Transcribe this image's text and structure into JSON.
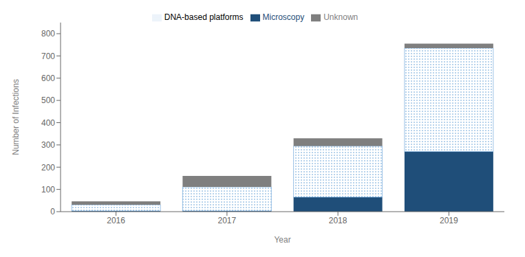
{
  "chart_data": {
    "type": "bar",
    "stacked": true,
    "xlabel": "Year",
    "ylabel": "Number of Infections",
    "categories": [
      "2016",
      "2017",
      "2018",
      "2019"
    ],
    "series": [
      {
        "name": "Microscopy",
        "color": "#1f4e79",
        "values": [
          3,
          3,
          65,
          270
        ]
      },
      {
        "name": "DNA-based platforms",
        "color": "#ffffff",
        "values": [
          28,
          108,
          230,
          465
        ]
      },
      {
        "name": "Unknown",
        "color": "#7f7f7f",
        "values": [
          15,
          50,
          35,
          20
        ]
      }
    ],
    "ylim": [
      0,
      850
    ],
    "yticks": [
      0,
      100,
      200,
      300,
      400,
      500,
      600,
      700,
      800
    ],
    "grid": false,
    "legend": "top"
  }
}
